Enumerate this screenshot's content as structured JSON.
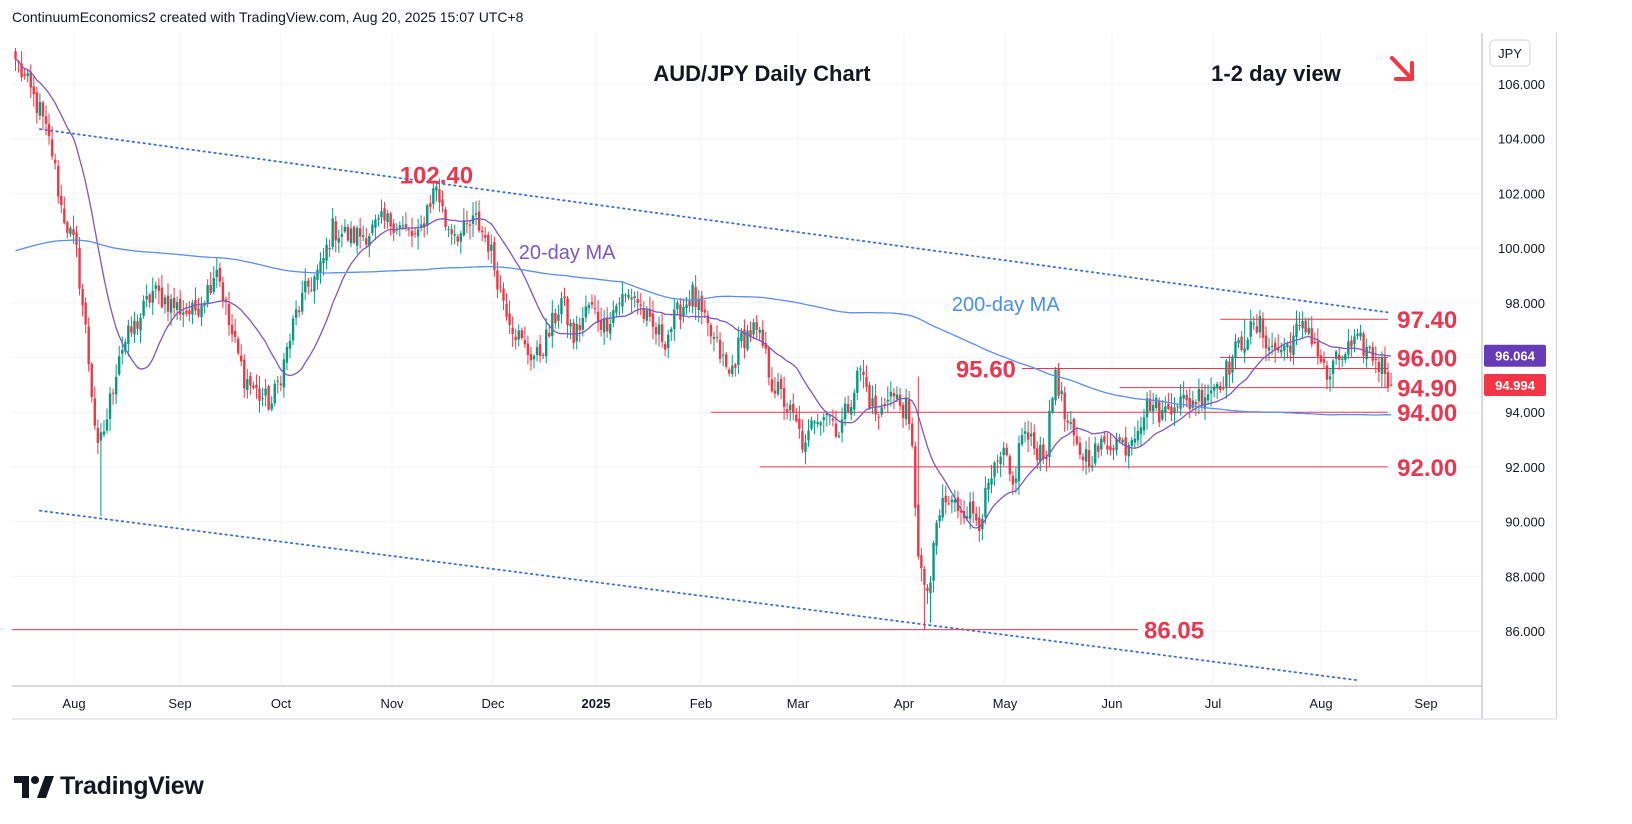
{
  "header": {
    "credit": "ContinuumEconomics2 created with TradingView.com, Aug 20, 2025 15:07 UTC+8"
  },
  "brand": {
    "name": "TradingView"
  },
  "chart_data": {
    "type": "candlestick",
    "title": "AUD/JPY Daily Chart",
    "subtitle": "1-2 day view",
    "direction_icon": "down-right-arrow-icon",
    "currency": "JPY",
    "ylim": [
      84.2,
      108.8
    ],
    "y_ticks": [
      "86.000",
      "88.000",
      "90.000",
      "92.000",
      "94.000",
      "96.000",
      "98.000",
      "100.000",
      "102.000",
      "104.000",
      "106.000"
    ],
    "x_ticks": [
      "Aug",
      "Sep",
      "Oct",
      "Nov",
      "Dec",
      "2025",
      "Feb",
      "Mar",
      "Apr",
      "May",
      "Jun",
      "Jul",
      "Aug",
      "Sep"
    ],
    "levels": [
      {
        "label": "102.40",
        "value": 102.4
      },
      {
        "label": "97.40",
        "value": 97.4
      },
      {
        "label": "96.00",
        "value": 96.0
      },
      {
        "label": "95.60",
        "value": 95.6
      },
      {
        "label": "94.90",
        "value": 94.9
      },
      {
        "label": "94.00",
        "value": 94.0
      },
      {
        "label": "92.00",
        "value": 92.0
      },
      {
        "label": "86.05",
        "value": 86.05
      }
    ],
    "ma_labels": {
      "ma20": "20-day MA",
      "ma200": "200-day MA"
    },
    "badges": [
      {
        "label": "96.064",
        "value": 96.064,
        "color": "#673ab7"
      },
      {
        "label": "94.994",
        "value": 94.994,
        "color": "#f23645"
      }
    ],
    "colors": {
      "up": "#089981",
      "down": "#f23645",
      "ma20": "#7e57c2",
      "ma200": "#5b8def",
      "level": "#e8384f",
      "trend": "#3b6fd6"
    },
    "anchors": [
      [
        0,
        106.9
      ],
      [
        8,
        105.0
      ],
      [
        12,
        103.5
      ],
      [
        15,
        101.5
      ],
      [
        20,
        99.8
      ],
      [
        23,
        97.0
      ],
      [
        27,
        92.5
      ],
      [
        30,
        93.8
      ],
      [
        34,
        96.2
      ],
      [
        40,
        97.3
      ],
      [
        45,
        98.4
      ],
      [
        52,
        97.9
      ],
      [
        58,
        97.6
      ],
      [
        63,
        98.5
      ],
      [
        66,
        99.4
      ],
      [
        70,
        97.2
      ],
      [
        75,
        95.3
      ],
      [
        80,
        94.6
      ],
      [
        84,
        94.3
      ],
      [
        88,
        95.8
      ],
      [
        92,
        97.6
      ],
      [
        96,
        98.6
      ],
      [
        100,
        99.2
      ],
      [
        104,
        100.7
      ],
      [
        110,
        100.4
      ],
      [
        116,
        100.6
      ],
      [
        120,
        100.9
      ],
      [
        124,
        101.0
      ],
      [
        128,
        100.6
      ],
      [
        132,
        100.3
      ],
      [
        135,
        101.5
      ],
      [
        138,
        102.3
      ],
      [
        141,
        100.9
      ],
      [
        146,
        100.5
      ],
      [
        151,
        101.0
      ],
      [
        155,
        100.2
      ],
      [
        159,
        98.5
      ],
      [
        163,
        97.2
      ],
      [
        167,
        96.3
      ],
      [
        171,
        96.0
      ],
      [
        175,
        96.9
      ],
      [
        179,
        98.1
      ],
      [
        183,
        96.7
      ],
      [
        188,
        97.9
      ],
      [
        193,
        97.2
      ],
      [
        198,
        98.1
      ],
      [
        203,
        98.3
      ],
      [
        208,
        97.1
      ],
      [
        213,
        96.7
      ],
      [
        218,
        97.8
      ],
      [
        222,
        98.3
      ],
      [
        226,
        97.2
      ],
      [
        230,
        96.4
      ],
      [
        234,
        95.3
      ],
      [
        238,
        96.7
      ],
      [
        242,
        97.0
      ],
      [
        245,
        96.4
      ],
      [
        248,
        95.1
      ],
      [
        252,
        94.4
      ],
      [
        256,
        93.5
      ],
      [
        259,
        92.6
      ],
      [
        262,
        93.9
      ],
      [
        266,
        94.1
      ],
      [
        270,
        93.3
      ],
      [
        274,
        94.6
      ],
      [
        277,
        95.6
      ],
      [
        280,
        94.5
      ],
      [
        283,
        93.7
      ],
      [
        286,
        94.8
      ],
      [
        289,
        94.4
      ],
      [
        292,
        94.1
      ],
      [
        294,
        92.5
      ],
      [
        296,
        89.0
      ],
      [
        298,
        87.3
      ],
      [
        300,
        87.8
      ],
      [
        302,
        89.8
      ],
      [
        304,
        90.7
      ],
      [
        308,
        90.6
      ],
      [
        312,
        90.5
      ],
      [
        316,
        90.1
      ],
      [
        320,
        91.5
      ],
      [
        324,
        92.4
      ],
      [
        327,
        91.2
      ],
      [
        330,
        93.3
      ],
      [
        334,
        92.7
      ],
      [
        338,
        92.6
      ],
      [
        341,
        95.6
      ],
      [
        344,
        93.8
      ],
      [
        348,
        92.6
      ],
      [
        352,
        92.4
      ],
      [
        356,
        92.7
      ],
      [
        360,
        93.0
      ],
      [
        364,
        92.8
      ],
      [
        368,
        93.6
      ],
      [
        372,
        94.4
      ],
      [
        376,
        93.9
      ],
      [
        380,
        94.5
      ],
      [
        384,
        94.3
      ],
      [
        388,
        94.6
      ],
      [
        392,
        94.9
      ],
      [
        396,
        95.3
      ],
      [
        400,
        96.2
      ],
      [
        404,
        96.9
      ],
      [
        408,
        97.1
      ],
      [
        412,
        96.3
      ],
      [
        416,
        96.3
      ],
      [
        420,
        96.9
      ],
      [
        424,
        97.1
      ],
      [
        427,
        96.2
      ],
      [
        430,
        95.2
      ],
      [
        433,
        95.8
      ],
      [
        437,
        96.3
      ],
      [
        441,
        96.5
      ],
      [
        444,
        96.2
      ],
      [
        447,
        95.8
      ],
      [
        449,
        95.6
      ],
      [
        451,
        94.99
      ]
    ]
  }
}
